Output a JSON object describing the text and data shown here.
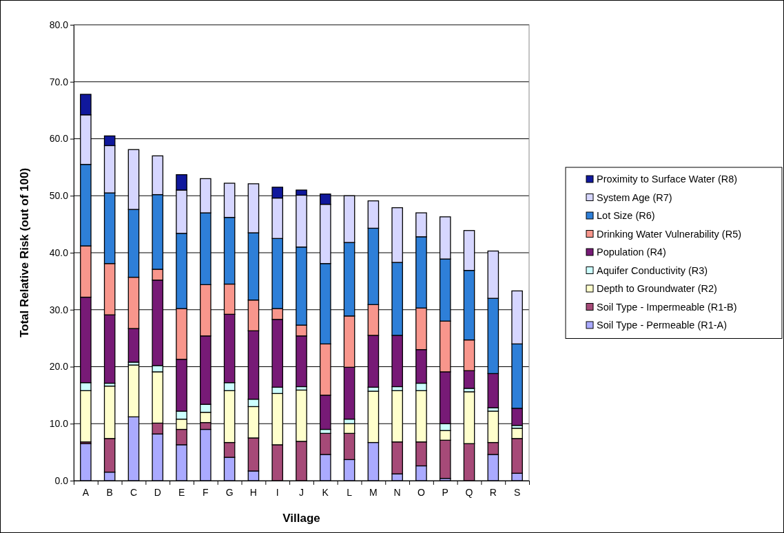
{
  "chart_data": {
    "type": "bar",
    "stacked": true,
    "xlabel": "Village",
    "ylabel": "Total Relative Risk (out of 100)",
    "categories": [
      "A",
      "B",
      "C",
      "D",
      "E",
      "F",
      "G",
      "H",
      "I",
      "J",
      "K",
      "L",
      "M",
      "N",
      "O",
      "P",
      "Q",
      "R",
      "S"
    ],
    "ylim": [
      0,
      80
    ],
    "yticks": [
      {
        "value": 0,
        "label": "0.0"
      },
      {
        "value": 10,
        "label": "10.0"
      },
      {
        "value": 20,
        "label": "20.0"
      },
      {
        "value": 30,
        "label": "30.0"
      },
      {
        "value": 40,
        "label": "40.0"
      },
      {
        "value": 50,
        "label": "50.0"
      },
      {
        "value": 60,
        "label": "60.0"
      },
      {
        "value": 70,
        "label": "70.0"
      },
      {
        "value": 80,
        "label": "80.0"
      }
    ],
    "grid": "y",
    "legend": "right",
    "series": [
      {
        "name": "Soil Type - Permeable (R1-A)",
        "color": "#aaaaff",
        "values": [
          6.5,
          1.5,
          11.2,
          8.2,
          6.3,
          9.0,
          4.1,
          1.7,
          null,
          0,
          4.6,
          3.7,
          6.7,
          1.2,
          2.6,
          0.4,
          0,
          4.6,
          1.3
        ]
      },
      {
        "name": "Soil Type - Impermeable (R1-B)",
        "color": "#a64a78",
        "values": [
          0.3,
          5.9,
          null,
          1.9,
          2.7,
          1.2,
          2.6,
          5.8,
          6.3,
          6.9,
          3.7,
          4.6,
          null,
          5.6,
          4.2,
          6.7,
          6.5,
          2.1,
          6.1
        ]
      },
      {
        "name": "Depth to Groundwater (R2)",
        "color": "#ffffcc",
        "values": [
          9.0,
          9.2,
          9.1,
          9.0,
          1.8,
          1.8,
          9.1,
          5.5,
          9.0,
          9.0,
          null,
          1.7,
          9.0,
          9.0,
          9.0,
          1.7,
          9.1,
          5.5,
          1.8
        ]
      },
      {
        "name": "Aquifer Conductivity (R3)",
        "color": "#ccffff",
        "values": [
          1.4,
          0.5,
          0.5,
          1.1,
          1.4,
          1.4,
          1.4,
          1.3,
          1.1,
          0.6,
          0.7,
          0.8,
          0.7,
          0.7,
          1.3,
          1.2,
          0.6,
          0.6,
          0.5
        ]
      },
      {
        "name": "Population (R4)",
        "color": "#771a76",
        "values": [
          15.0,
          12.0,
          5.9,
          15.0,
          9.1,
          12.0,
          12.0,
          12.0,
          11.9,
          8.9,
          6.0,
          9.1,
          9.1,
          9.0,
          5.9,
          9.1,
          3.1,
          6.0,
          3.0
        ]
      },
      {
        "name": "Drinking Water Vulnerability (R5)",
        "color": "#f8968c",
        "values": [
          9.0,
          9.0,
          9.0,
          1.9,
          8.9,
          9.0,
          5.3,
          5.4,
          1.9,
          1.9,
          9.0,
          9.0,
          5.4,
          0,
          7.3,
          8.9,
          5.4,
          0,
          0
        ]
      },
      {
        "name": "Lot Size (R6)",
        "color": "#2e7fd8",
        "values": [
          14.3,
          12.4,
          11.9,
          13.1,
          13.2,
          12.6,
          11.7,
          11.8,
          12.3,
          13.7,
          14.1,
          12.9,
          13.4,
          12.8,
          12.5,
          10.9,
          12.2,
          13.2,
          11.3
        ]
      },
      {
        "name": "System Age (R7)",
        "color": "#d6d6ff",
        "values": [
          8.7,
          8.3,
          10.5,
          6.8,
          7.6,
          6.0,
          6.0,
          8.6,
          7.1,
          9.1,
          10.4,
          8.2,
          4.8,
          9.6,
          4.2,
          7.4,
          7.0,
          8.3,
          9.3
        ]
      },
      {
        "name": "Proximity to Surface Water (R8)",
        "color": "#10189c",
        "values": [
          3.6,
          1.7,
          0,
          0,
          2.7,
          0,
          0,
          0,
          1.9,
          0.9,
          1.8,
          0,
          0,
          0,
          0,
          0,
          0,
          0,
          0
        ]
      }
    ]
  }
}
